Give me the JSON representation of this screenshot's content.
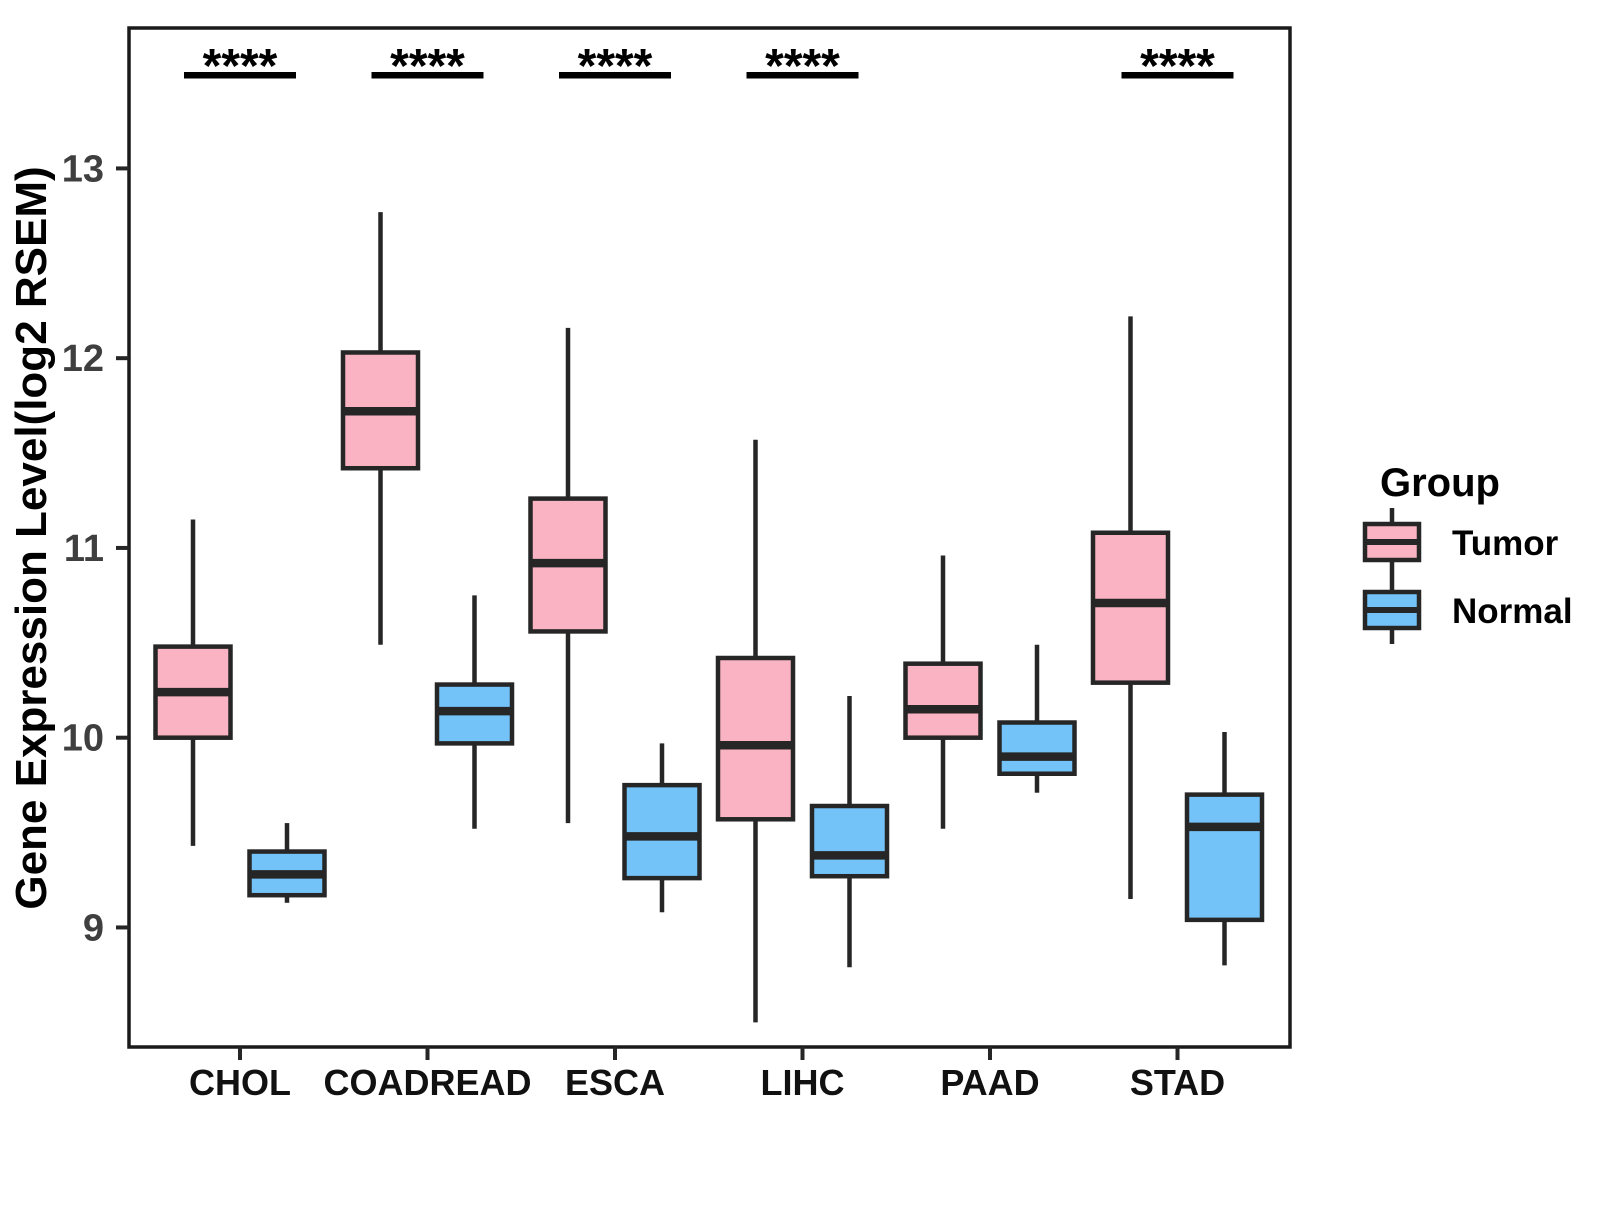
{
  "chart_data": {
    "type": "boxplot",
    "title": "",
    "xlabel": "",
    "ylabel": "Gene Expression Level(log2 RSEM)",
    "ylim": [
      8.37,
      13.74
    ],
    "yticks": [
      9,
      10,
      11,
      12,
      13
    ],
    "grid": false,
    "categories": [
      "CHOL",
      "COADREAD",
      "ESCA",
      "LIHC",
      "PAAD",
      "STAD"
    ],
    "groups": [
      "Tumor",
      "Normal"
    ],
    "colors": {
      "Tumor": "#F9B3C2",
      "Normal": "#74C3F8",
      "line": "#262626",
      "axis_text": "#3F3F3F",
      "label_text": "#111111",
      "panel_border": "#1A1A1A"
    },
    "series": [
      {
        "category": "CHOL",
        "group": "Tumor",
        "whisker_low": 9.43,
        "q1": 10.0,
        "median": 10.24,
        "q3": 10.48,
        "whisker_high": 11.15
      },
      {
        "category": "CHOL",
        "group": "Normal",
        "whisker_low": 9.13,
        "q1": 9.17,
        "median": 9.28,
        "q3": 9.4,
        "whisker_high": 9.55
      },
      {
        "category": "COADREAD",
        "group": "Tumor",
        "whisker_low": 10.49,
        "q1": 11.42,
        "median": 11.72,
        "q3": 12.03,
        "whisker_high": 12.77
      },
      {
        "category": "COADREAD",
        "group": "Normal",
        "whisker_low": 9.52,
        "q1": 9.97,
        "median": 10.14,
        "q3": 10.28,
        "whisker_high": 10.75
      },
      {
        "category": "ESCA",
        "group": "Tumor",
        "whisker_low": 9.55,
        "q1": 10.56,
        "median": 10.92,
        "q3": 11.26,
        "whisker_high": 12.16
      },
      {
        "category": "ESCA",
        "group": "Normal",
        "whisker_low": 9.08,
        "q1": 9.26,
        "median": 9.48,
        "q3": 9.75,
        "whisker_high": 9.97
      },
      {
        "category": "LIHC",
        "group": "Tumor",
        "whisker_low": 8.5,
        "q1": 9.57,
        "median": 9.96,
        "q3": 10.42,
        "whisker_high": 11.57
      },
      {
        "category": "LIHC",
        "group": "Normal",
        "whisker_low": 8.79,
        "q1": 9.27,
        "median": 9.38,
        "q3": 9.64,
        "whisker_high": 10.22
      },
      {
        "category": "PAAD",
        "group": "Tumor",
        "whisker_low": 9.52,
        "q1": 10.0,
        "median": 10.15,
        "q3": 10.39,
        "whisker_high": 10.96
      },
      {
        "category": "PAAD",
        "group": "Normal",
        "whisker_low": 9.71,
        "q1": 9.81,
        "median": 9.9,
        "q3": 10.08,
        "whisker_high": 10.49
      },
      {
        "category": "STAD",
        "group": "Tumor",
        "whisker_low": 9.15,
        "q1": 10.29,
        "median": 10.71,
        "q3": 11.08,
        "whisker_high": 12.22
      },
      {
        "category": "STAD",
        "group": "Normal",
        "whisker_low": 8.8,
        "q1": 9.04,
        "median": 9.53,
        "q3": 9.7,
        "whisker_high": 10.03
      }
    ],
    "significance": [
      {
        "category": "CHOL",
        "label": "****"
      },
      {
        "category": "COADREAD",
        "label": "****"
      },
      {
        "category": "ESCA",
        "label": "****"
      },
      {
        "category": "LIHC",
        "label": "****"
      },
      {
        "category": "STAD",
        "label": "****"
      }
    ],
    "legend": {
      "title": "Group",
      "position": "right",
      "entries": [
        {
          "label": "Tumor",
          "color": "#F9B3C2"
        },
        {
          "label": "Normal",
          "color": "#74C3F8"
        }
      ]
    }
  }
}
